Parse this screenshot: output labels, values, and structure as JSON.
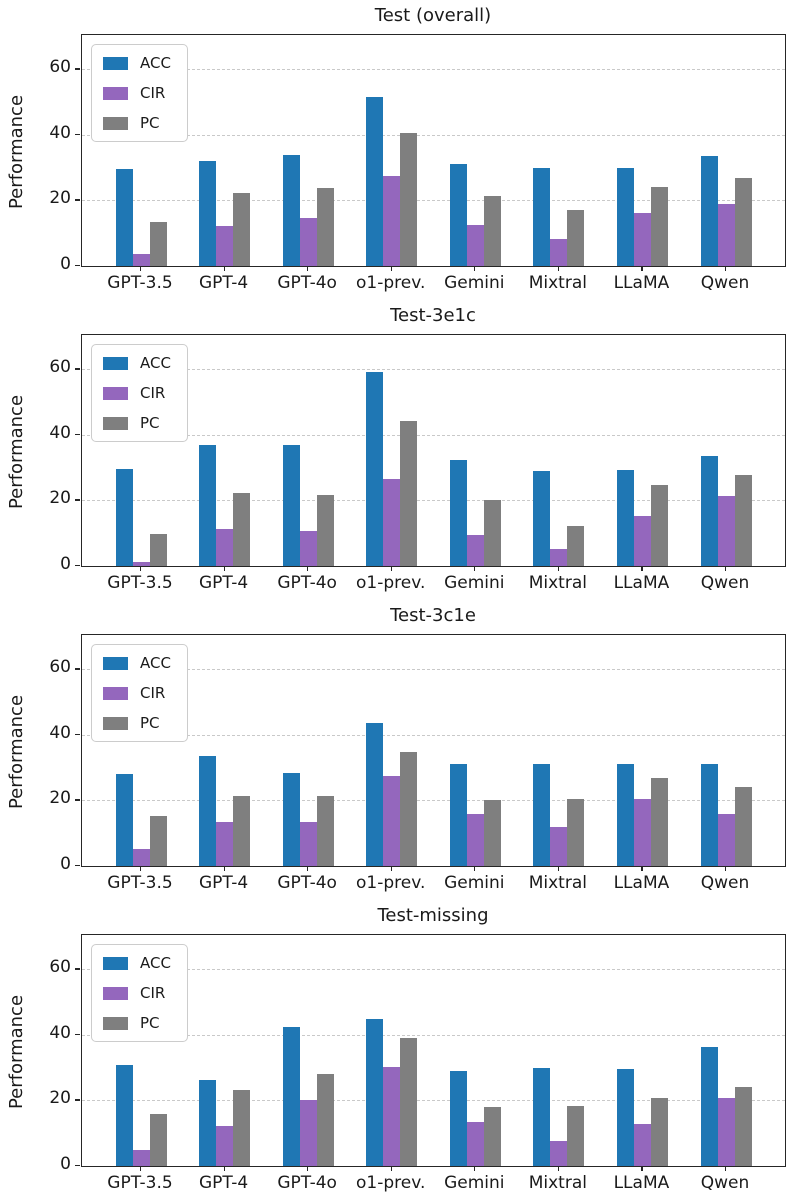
{
  "figure": {
    "ylabel": "Performance",
    "yticks": [
      0,
      20,
      40,
      60
    ],
    "ylim": [
      0,
      70.5
    ],
    "grid": true,
    "legend_position": "upper left",
    "categories": [
      "GPT-3.5",
      "GPT-4",
      "GPT-4o",
      "o1-prev.",
      "Gemini",
      "Mixtral",
      "LLaMA",
      "Qwen"
    ],
    "legend": [
      {
        "name": "ACC",
        "color": "#1f77b4"
      },
      {
        "name": "CIR",
        "color": "#9467bd"
      },
      {
        "name": "PC",
        "color": "#7f7f7f"
      }
    ]
  },
  "chart_data": [
    {
      "type": "bar",
      "title": "Test (overall)",
      "xlabel": "",
      "ylabel": "Performance",
      "ylim": [
        0,
        70.5
      ],
      "grid": true,
      "legend_position": "upper left",
      "categories": [
        "GPT-3.5",
        "GPT-4",
        "GPT-4o",
        "o1-prev.",
        "Gemini",
        "Mixtral",
        "LLaMA",
        "Qwen"
      ],
      "series": [
        {
          "name": "ACC",
          "color": "#1f77b4",
          "values": [
            29.5,
            32.0,
            34.0,
            51.5,
            31.0,
            30.0,
            30.0,
            33.5
          ]
        },
        {
          "name": "CIR",
          "color": "#9467bd",
          "values": [
            3.8,
            12.3,
            14.6,
            27.4,
            12.6,
            8.1,
            16.3,
            19.0
          ]
        },
        {
          "name": "PC",
          "color": "#7f7f7f",
          "values": [
            13.3,
            22.3,
            23.8,
            40.5,
            21.5,
            17.0,
            24.0,
            26.8
          ]
        }
      ]
    },
    {
      "type": "bar",
      "title": "Test-3e1c",
      "xlabel": "",
      "ylabel": "Performance",
      "ylim": [
        0,
        70.5
      ],
      "grid": true,
      "legend_position": "upper left",
      "categories": [
        "GPT-3.5",
        "GPT-4",
        "GPT-4o",
        "o1-prev.",
        "Gemini",
        "Mixtral",
        "LLaMA",
        "Qwen"
      ],
      "series": [
        {
          "name": "ACC",
          "color": "#1f77b4",
          "values": [
            29.6,
            37.0,
            37.0,
            59.2,
            32.5,
            28.9,
            29.2,
            33.5
          ]
        },
        {
          "name": "CIR",
          "color": "#9467bd",
          "values": [
            1.2,
            11.4,
            10.6,
            26.5,
            9.6,
            5.3,
            15.4,
            21.5
          ]
        },
        {
          "name": "PC",
          "color": "#7f7f7f",
          "values": [
            9.7,
            22.4,
            21.6,
            44.4,
            20.0,
            12.1,
            24.6,
            27.8
          ]
        }
      ]
    },
    {
      "type": "bar",
      "title": "Test-3c1e",
      "xlabel": "",
      "ylabel": "Performance",
      "ylim": [
        0,
        70.5
      ],
      "grid": true,
      "legend_position": "upper left",
      "categories": [
        "GPT-3.5",
        "GPT-4",
        "GPT-4o",
        "o1-prev.",
        "Gemini",
        "Mixtral",
        "LLaMA",
        "Qwen"
      ],
      "series": [
        {
          "name": "ACC",
          "color": "#1f77b4",
          "values": [
            28.1,
            33.5,
            28.5,
            43.5,
            31.2,
            31.2,
            31.2,
            31.2
          ]
        },
        {
          "name": "CIR",
          "color": "#9467bd",
          "values": [
            5.3,
            13.3,
            13.3,
            27.5,
            15.8,
            11.8,
            20.6,
            15.8
          ]
        },
        {
          "name": "PC",
          "color": "#7f7f7f",
          "values": [
            15.2,
            21.4,
            21.4,
            34.7,
            20.0,
            20.4,
            27.0,
            24.2
          ]
        }
      ]
    },
    {
      "type": "bar",
      "title": "Test-missing",
      "xlabel": "",
      "ylabel": "Performance",
      "ylim": [
        0,
        70.5
      ],
      "grid": true,
      "legend_position": "upper left",
      "categories": [
        "GPT-3.5",
        "GPT-4",
        "GPT-4o",
        "o1-prev.",
        "Gemini",
        "Mixtral",
        "LLaMA",
        "Qwen"
      ],
      "series": [
        {
          "name": "ACC",
          "color": "#1f77b4",
          "values": [
            30.7,
            26.3,
            42.4,
            44.8,
            28.9,
            29.9,
            29.7,
            36.3
          ]
        },
        {
          "name": "CIR",
          "color": "#9467bd",
          "values": [
            4.8,
            12.3,
            20.0,
            30.2,
            13.3,
            7.7,
            12.9,
            20.7
          ]
        },
        {
          "name": "PC",
          "color": "#7f7f7f",
          "values": [
            15.8,
            23.1,
            28.1,
            39.1,
            18.0,
            18.3,
            20.8,
            24.0
          ]
        }
      ]
    }
  ]
}
